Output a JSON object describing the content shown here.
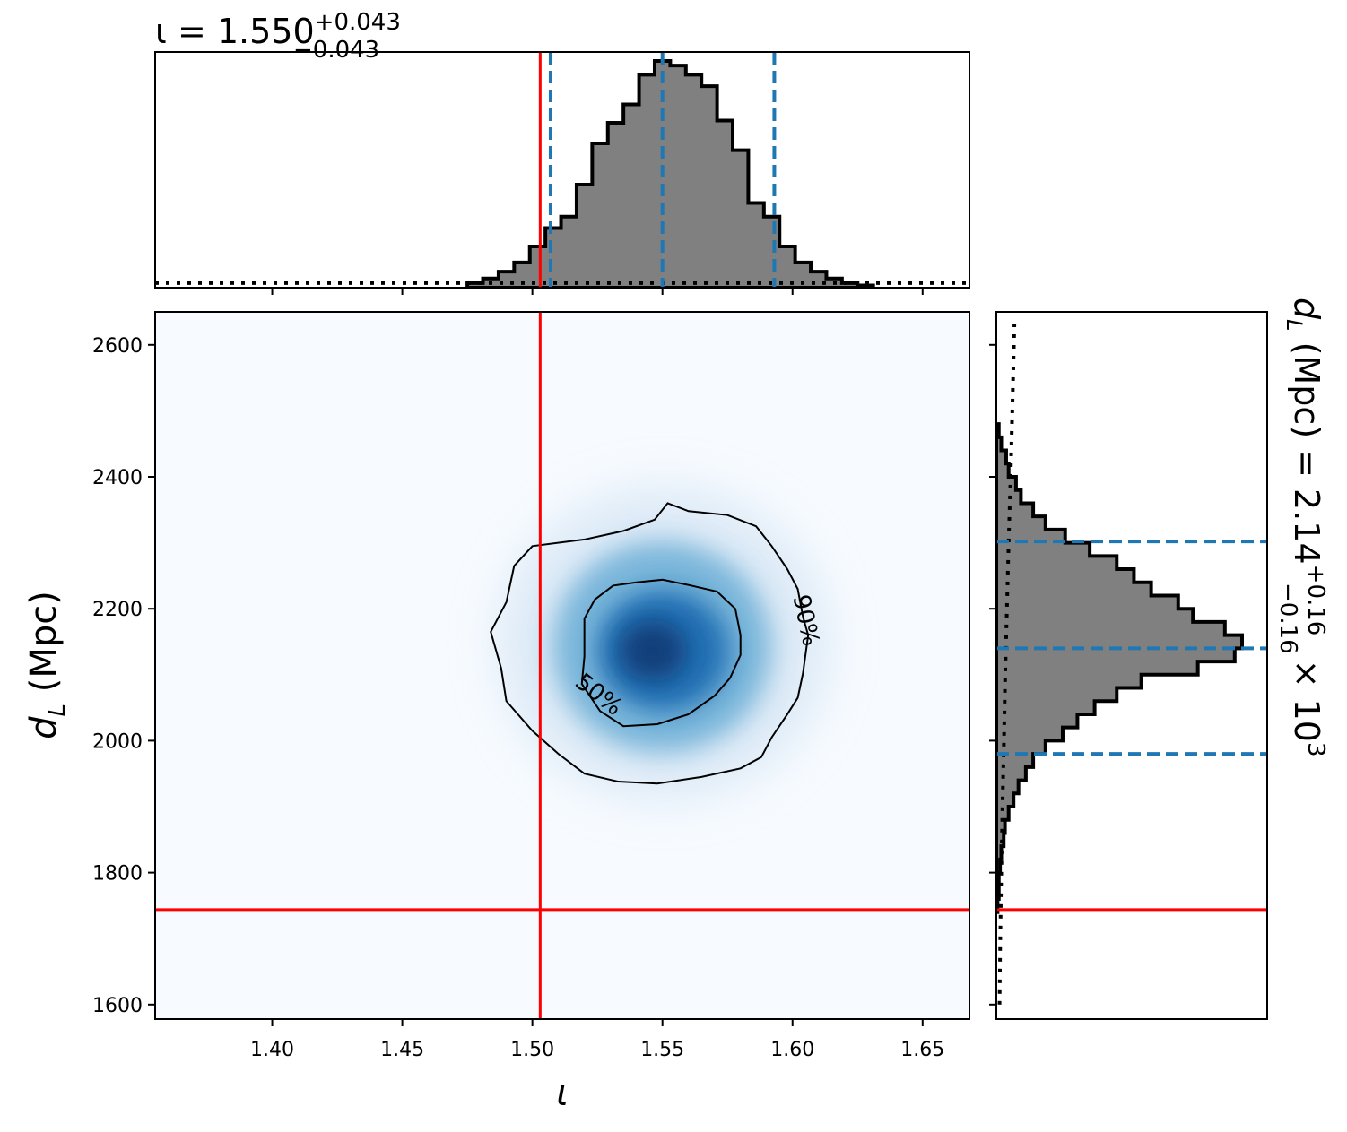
{
  "chart_data": {
    "type": "corner",
    "parameters": {
      "x": {
        "symbol": "ι",
        "xlabel": "ι",
        "title": {
          "prefix": "ι = 1.550",
          "sup": "+0.043",
          "sub": "−0.043"
        },
        "range": [
          1.355,
          1.668
        ],
        "ticks": [
          "1.40",
          "1.45",
          "1.50",
          "1.55",
          "1.60",
          "1.65"
        ],
        "tick_values": [
          1.4,
          1.45,
          1.5,
          1.55,
          1.6,
          1.65
        ],
        "median": 1.55,
        "quantiles": [
          1.507,
          1.55,
          1.593
        ],
        "injection": 1.503,
        "histogram": {
          "bin_edges": [
            1.475,
            1.481,
            1.487,
            1.493,
            1.499,
            1.505,
            1.511,
            1.517,
            1.523,
            1.529,
            1.535,
            1.541,
            1.547,
            1.553,
            1.559,
            1.565,
            1.571,
            1.577,
            1.583,
            1.589,
            1.595,
            1.601,
            1.607,
            1.613,
            1.619,
            1.625,
            1.631
          ],
          "counts": [
            2,
            4,
            7,
            11,
            18,
            26,
            31,
            45,
            63,
            72,
            80,
            93,
            99,
            97,
            93,
            88,
            73,
            60,
            37,
            31,
            18,
            11,
            7,
            4,
            2,
            1
          ]
        },
        "prior_level": 2
      },
      "y": {
        "symbol": "d_L",
        "ylabel": "(Mpc)",
        "title": {
          "prefix": "(Mpc) = 2.14",
          "sup": "+0.16",
          "sub": "−0.16",
          "suffix": "× 10",
          "exp": "3"
        },
        "range": [
          1578,
          2650
        ],
        "ticks": [
          "1600",
          "1800",
          "2000",
          "2200",
          "2400",
          "2600"
        ],
        "tick_values": [
          1600,
          1800,
          2000,
          2200,
          2400,
          2600
        ],
        "median": 2140,
        "quantiles": [
          1980,
          2140,
          2302
        ],
        "injection": 1744,
        "histogram": {
          "bin_edges": [
            1740,
            1760,
            1780,
            1800,
            1820,
            1840,
            1860,
            1880,
            1900,
            1920,
            1940,
            1960,
            1980,
            2000,
            2020,
            2040,
            2060,
            2080,
            2100,
            2120,
            2140,
            2160,
            2180,
            2200,
            2220,
            2240,
            2260,
            2280,
            2300,
            2320,
            2340,
            2360,
            2380,
            2400,
            2420,
            2440,
            2460,
            2480
          ],
          "counts": [
            0.5,
            1,
            1,
            1.5,
            2,
            3,
            3.5,
            5,
            7,
            9,
            12,
            15,
            20,
            27,
            33,
            40,
            49,
            59,
            82,
            97,
            100,
            93,
            80,
            74,
            63,
            56,
            49,
            38,
            28,
            20,
            15,
            10,
            8,
            5,
            4,
            2,
            1
          ]
        },
        "prior": [
          [
            1600,
            1.3
          ],
          [
            1700,
            1.6
          ],
          [
            1800,
            2.0
          ],
          [
            1900,
            2.5
          ],
          [
            2000,
            3.1
          ],
          [
            2100,
            3.6
          ],
          [
            2200,
            4.3
          ],
          [
            2300,
            5.0
          ],
          [
            2400,
            5.8
          ],
          [
            2500,
            6.5
          ],
          [
            2640,
            7.4
          ]
        ]
      }
    },
    "joint": {
      "colormap": "Blues",
      "contour_levels": [
        "50%",
        "90%"
      ],
      "contours": {
        "50%": [
          [
            1.52,
            2128
          ],
          [
            1.52,
            2185
          ],
          [
            1.524,
            2214
          ],
          [
            1.531,
            2235
          ],
          [
            1.54,
            2240
          ],
          [
            1.55,
            2244
          ],
          [
            1.56,
            2236
          ],
          [
            1.571,
            2226
          ],
          [
            1.578,
            2200
          ],
          [
            1.58,
            2160
          ],
          [
            1.58,
            2130
          ],
          [
            1.576,
            2095
          ],
          [
            1.57,
            2068
          ],
          [
            1.56,
            2040
          ],
          [
            1.548,
            2025
          ],
          [
            1.535,
            2022
          ],
          [
            1.526,
            2045
          ],
          [
            1.519,
            2086
          ]
        ],
        "90%": [
          [
            1.52,
            2305
          ],
          [
            1.535,
            2318
          ],
          [
            1.547,
            2335
          ],
          [
            1.552,
            2360
          ],
          [
            1.56,
            2348
          ],
          [
            1.575,
            2342
          ],
          [
            1.586,
            2325
          ],
          [
            1.592,
            2295
          ],
          [
            1.598,
            2260
          ],
          [
            1.602,
            2230
          ],
          [
            1.604,
            2188
          ],
          [
            1.606,
            2160
          ],
          [
            1.604,
            2102
          ],
          [
            1.602,
            2065
          ],
          [
            1.598,
            2040
          ],
          [
            1.592,
            2005
          ],
          [
            1.588,
            1975
          ],
          [
            1.58,
            1958
          ],
          [
            1.565,
            1945
          ],
          [
            1.548,
            1935
          ],
          [
            1.533,
            1938
          ],
          [
            1.52,
            1950
          ],
          [
            1.51,
            1980
          ],
          [
            1.5,
            2015
          ],
          [
            1.49,
            2060
          ],
          [
            1.488,
            2110
          ],
          [
            1.484,
            2165
          ],
          [
            1.49,
            2210
          ],
          [
            1.493,
            2265
          ],
          [
            1.5,
            2295
          ]
        ]
      },
      "density_peak": [
        1.547,
        2125
      ]
    },
    "legend": "none",
    "grid": false
  }
}
